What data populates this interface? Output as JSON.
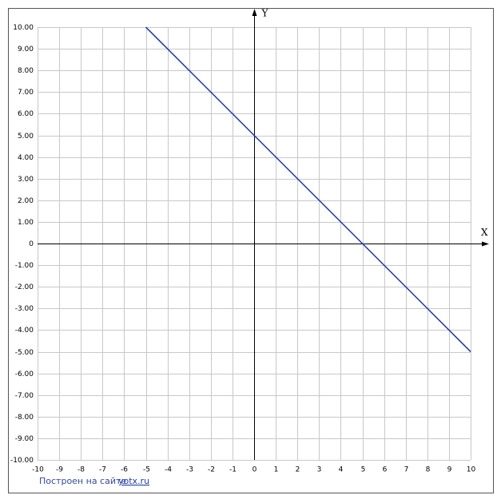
{
  "chart_data": {
    "type": "line",
    "xlabel": "X",
    "ylabel": "Y",
    "x": [
      -5,
      10
    ],
    "values": [
      10,
      -5
    ],
    "color": "#2a43b0",
    "xlim": [
      -10,
      10
    ],
    "ylim": [
      -10,
      10
    ],
    "xticks": [
      -10,
      -9,
      -8,
      -7,
      -6,
      -5,
      -4,
      -3,
      -2,
      -1,
      0,
      1,
      2,
      3,
      4,
      5,
      6,
      7,
      8,
      9,
      10
    ],
    "yticks": [
      {
        "value": -10,
        "label": "-10.00"
      },
      {
        "value": -9,
        "label": "-9.00"
      },
      {
        "value": -8,
        "label": "-8.00"
      },
      {
        "value": -7,
        "label": "-7.00"
      },
      {
        "value": -6,
        "label": "-6.00"
      },
      {
        "value": -5,
        "label": "-5.00"
      },
      {
        "value": -4,
        "label": "-4.00"
      },
      {
        "value": -3,
        "label": "-3.00"
      },
      {
        "value": -2,
        "label": "-2.00"
      },
      {
        "value": -1,
        "label": "-1.00"
      },
      0,
      {
        "value": 1,
        "label": "1.00"
      },
      {
        "value": 2,
        "label": "2.00"
      },
      {
        "value": 3,
        "label": "3.00"
      },
      {
        "value": 4,
        "label": "4.00"
      },
      {
        "value": 5,
        "label": "5.00"
      },
      {
        "value": 6,
        "label": "6.00"
      },
      {
        "value": 7,
        "label": "7.00"
      },
      {
        "value": 8,
        "label": "8.00"
      },
      {
        "value": 9,
        "label": "9.00"
      },
      {
        "value": 10,
        "label": "10.00"
      }
    ],
    "grid": true
  },
  "footer": {
    "text": "Построен на сайте",
    "link": "yotx.ru"
  }
}
